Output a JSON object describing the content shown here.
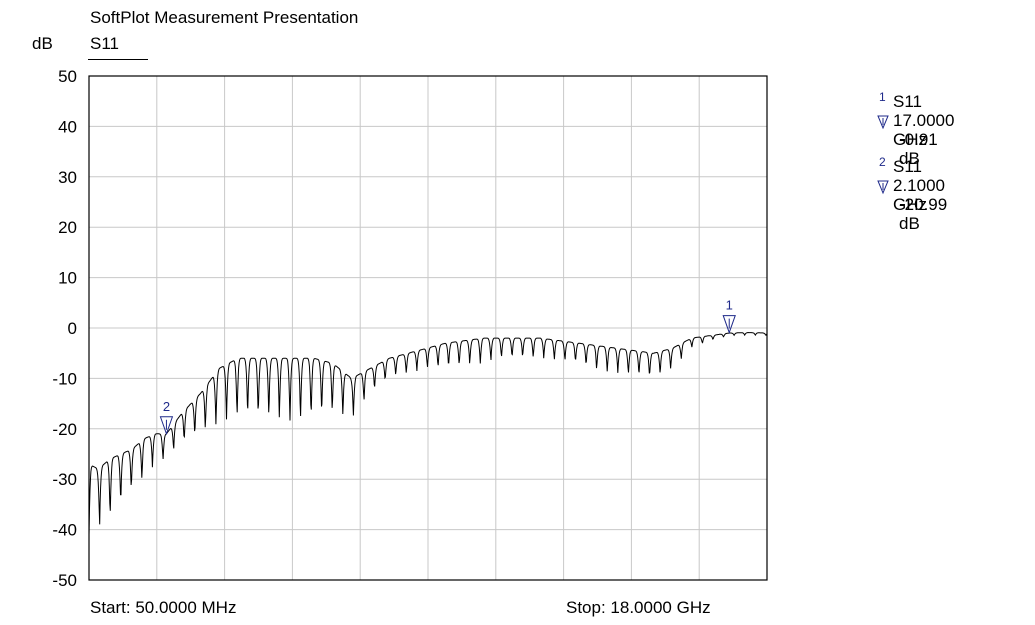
{
  "header": {
    "title": "SoftPlot Measurement Presentation",
    "y_unit": "dB",
    "trace": "S11"
  },
  "footer": {
    "start": "Start: 50.0000 MHz",
    "stop": "Stop: 18.0000 GHz"
  },
  "markers": [
    {
      "id": "1",
      "trace": "S11",
      "freq": "17.0000 GHz",
      "value": "-0.91 dB"
    },
    {
      "id": "2",
      "trace": "S11",
      "freq": "2.1000 GHz",
      "value": "-20.99 dB"
    }
  ],
  "chart_data": {
    "type": "line",
    "title": "SoftPlot Measurement Presentation",
    "ylabel": "dB",
    "ylim": [
      -50,
      50
    ],
    "xlim_ghz": [
      0.05,
      18.0
    ],
    "yticks": [
      "50",
      "40",
      "30",
      "20",
      "10",
      "0",
      "-10",
      "-20",
      "-30",
      "-40",
      "-50"
    ],
    "grid": true,
    "x_divisions": 10,
    "series": [
      {
        "name": "S11",
        "color": "#000000",
        "x_ghz": [
          0.05,
          0.3,
          0.6,
          0.9,
          1.2,
          1.5,
          1.8,
          2.1,
          2.5,
          3.0,
          3.5,
          4.0,
          4.5,
          5.0,
          5.5,
          6.0,
          6.5,
          7.0,
          7.5,
          8.0,
          8.5,
          9.0,
          9.5,
          10.0,
          10.5,
          11.0,
          11.5,
          12.0,
          12.5,
          13.0,
          13.5,
          14.0,
          14.5,
          15.0,
          15.5,
          16.0,
          16.5,
          17.0,
          17.5,
          18.0
        ],
        "envelope_db": [
          -27,
          -28,
          -26,
          -25,
          -24,
          -22,
          -21,
          -21,
          -17,
          -13,
          -8,
          -6,
          -6,
          -6,
          -6,
          -6,
          -7,
          -10,
          -8,
          -6,
          -5,
          -4,
          -3,
          -2.5,
          -2,
          -2,
          -2,
          -2,
          -2.5,
          -3,
          -3.5,
          -4,
          -4.5,
          -5,
          -4,
          -2,
          -1.5,
          -1,
          -0.9,
          -1
        ],
        "ripple_db": [
          14,
          12,
          12,
          10,
          8,
          8,
          6,
          5,
          6,
          8,
          11,
          12,
          12,
          12,
          13,
          12,
          10,
          8,
          5,
          4,
          4,
          4,
          5,
          5,
          5,
          4,
          4,
          4,
          4,
          4,
          5,
          5,
          5,
          5,
          4,
          2,
          1,
          0.5,
          0.5,
          0.5
        ],
        "ripple_period_ghz": 0.28
      }
    ],
    "markers": [
      {
        "id": "1",
        "x_ghz": 17.0,
        "y_db": -0.91
      },
      {
        "id": "2",
        "x_ghz": 2.1,
        "y_db": -20.99
      }
    ]
  }
}
